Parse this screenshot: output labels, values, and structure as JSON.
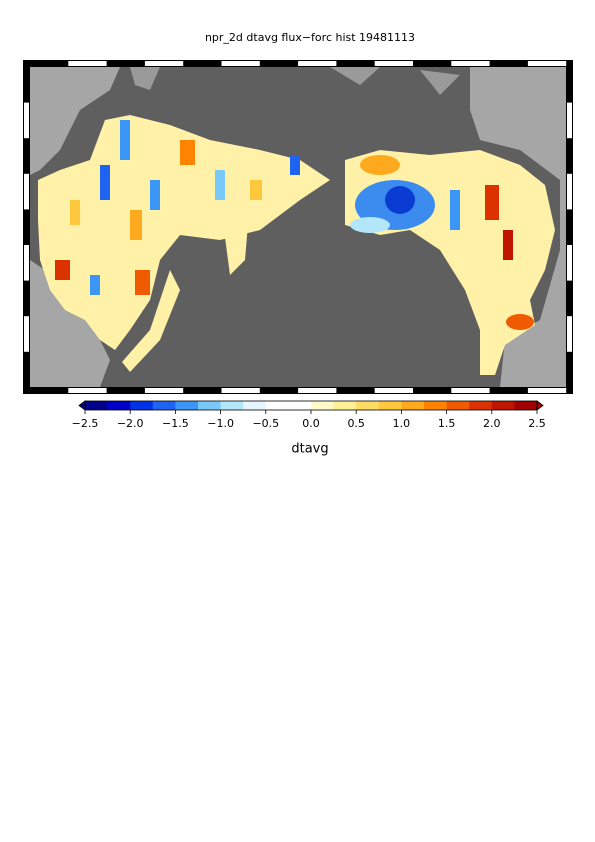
{
  "title": "npr_2d dtavg flux−forc hist 19481113",
  "colorbar": {
    "label": "dtavg",
    "range": [
      -2.5,
      2.5
    ],
    "ticks": [
      {
        "value": -2.5,
        "label": "−2.5"
      },
      {
        "value": -2.0,
        "label": "−2.0"
      },
      {
        "value": -1.5,
        "label": "−1.5"
      },
      {
        "value": -1.0,
        "label": "−1.0"
      },
      {
        "value": -0.5,
        "label": "−0.5"
      },
      {
        "value": 0,
        "label": "0.0"
      },
      0.5,
      {
        "value": 1,
        "label": "1.0"
      },
      1.5,
      {
        "value": 2,
        "label": "2.0"
      },
      2.5
    ],
    "colors": [
      "#00008c",
      "#0000c8",
      "#0032e6",
      "#1e64f0",
      "#3c96f5",
      "#78c8fa",
      "#b4e6fa",
      "#e6f5ff",
      "#ffffff",
      "#ffffff",
      "#fffac8",
      "#fff096",
      "#ffdc64",
      "#ffc83c",
      "#ffaa1e",
      "#ff8200",
      "#f05a00",
      "#dc3200",
      "#be1400",
      "#a00000"
    ]
  }
}
